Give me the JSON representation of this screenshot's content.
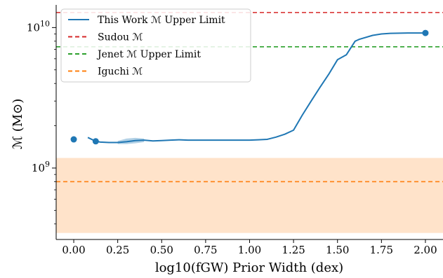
{
  "chart_data": {
    "type": "line",
    "title": "",
    "xlabel": "log10(fGW) Prior Width (dex)",
    "ylabel": "ℳ (M⊙)",
    "yscale": "log",
    "xlim": [
      -0.1,
      2.1
    ],
    "ylim": [
      310000000,
      14500000000
    ],
    "grid": false,
    "legend_position": "top-left",
    "x_ticks": [
      {
        "value": 0.0,
        "label": "0.00"
      },
      {
        "value": 0.25,
        "label": "0.25"
      },
      {
        "value": 0.5,
        "label": "0.50"
      },
      {
        "value": 0.75,
        "label": "0.75"
      },
      {
        "value": 1.0,
        "label": "1.00"
      },
      {
        "value": 1.25,
        "label": "1.25"
      },
      {
        "value": 1.5,
        "label": "1.50"
      },
      {
        "value": 1.75,
        "label": "1.75"
      },
      {
        "value": 2.0,
        "label": "2.00"
      }
    ],
    "y_major_ticks": [
      {
        "value": 1000000000,
        "base": "10",
        "exp": "9"
      },
      {
        "value": 10000000000,
        "base": "10",
        "exp": "10"
      }
    ],
    "series": [
      {
        "name": "This Work ℳ Upper Limit",
        "style": "line",
        "color": "#1f77b4",
        "x": [
          0.08,
          0.12,
          0.15,
          0.2,
          0.25,
          0.3,
          0.35,
          0.4,
          0.45,
          0.5,
          0.55,
          0.6,
          0.65,
          0.7,
          0.8,
          0.9,
          1.0,
          1.05,
          1.1,
          1.15,
          1.2,
          1.25,
          1.3,
          1.35,
          1.4,
          1.45,
          1.5,
          1.55,
          1.6,
          1.625,
          1.7,
          1.75,
          1.8,
          1.9,
          2.0
        ],
        "y": [
          1650000000,
          1560000000,
          1530000000,
          1520000000,
          1520000000,
          1540000000,
          1570000000,
          1580000000,
          1560000000,
          1570000000,
          1580000000,
          1590000000,
          1580000000,
          1580000000,
          1580000000,
          1580000000,
          1580000000,
          1590000000,
          1600000000,
          1660000000,
          1740000000,
          1860000000,
          2380000000,
          3000000000,
          3750000000,
          4650000000,
          5900000000,
          6400000000,
          8000000000,
          8250000000,
          8800000000,
          9000000000,
          9100000000,
          9150000000,
          9150000000
        ]
      },
      {
        "name": "",
        "style": "band",
        "color": "#1f77b4",
        "x": [
          0.25,
          0.3,
          0.35,
          0.4
        ],
        "y_low": [
          1480000000,
          1480000000,
          1500000000,
          1530000000
        ],
        "y_high": [
          1560000000,
          1620000000,
          1640000000,
          1620000000
        ]
      },
      {
        "name": "",
        "style": "points",
        "color": "#1f77b4",
        "x": [
          0.0,
          0.125,
          2.0
        ],
        "y": [
          1600000000,
          1550000000,
          9150000000
        ]
      },
      {
        "name": "Sudou ℳ",
        "style": "hline",
        "color": "#d62728",
        "y": 12800000000
      },
      {
        "name": "Jenet ℳ Upper Limit",
        "style": "hline",
        "color": "#2ca02c",
        "y": 7300000000
      },
      {
        "name": "Iguchi ℳ",
        "style": "hline",
        "color": "#ff7f0e",
        "y": 800000000
      },
      {
        "name": "",
        "style": "hband",
        "color": "#ff7f0e",
        "y_low": 345000000,
        "y_high": 1180000000
      }
    ],
    "legend": [
      {
        "label": "This Work ℳ Upper Limit",
        "color": "#1f77b4",
        "dash": "solid"
      },
      {
        "label": "Sudou ℳ",
        "color": "#d62728",
        "dash": "dashed"
      },
      {
        "label": "Jenet ℳ Upper Limit",
        "color": "#2ca02c",
        "dash": "dashed"
      },
      {
        "label": "Iguchi ℳ",
        "color": "#ff7f0e",
        "dash": "dashed"
      }
    ]
  }
}
